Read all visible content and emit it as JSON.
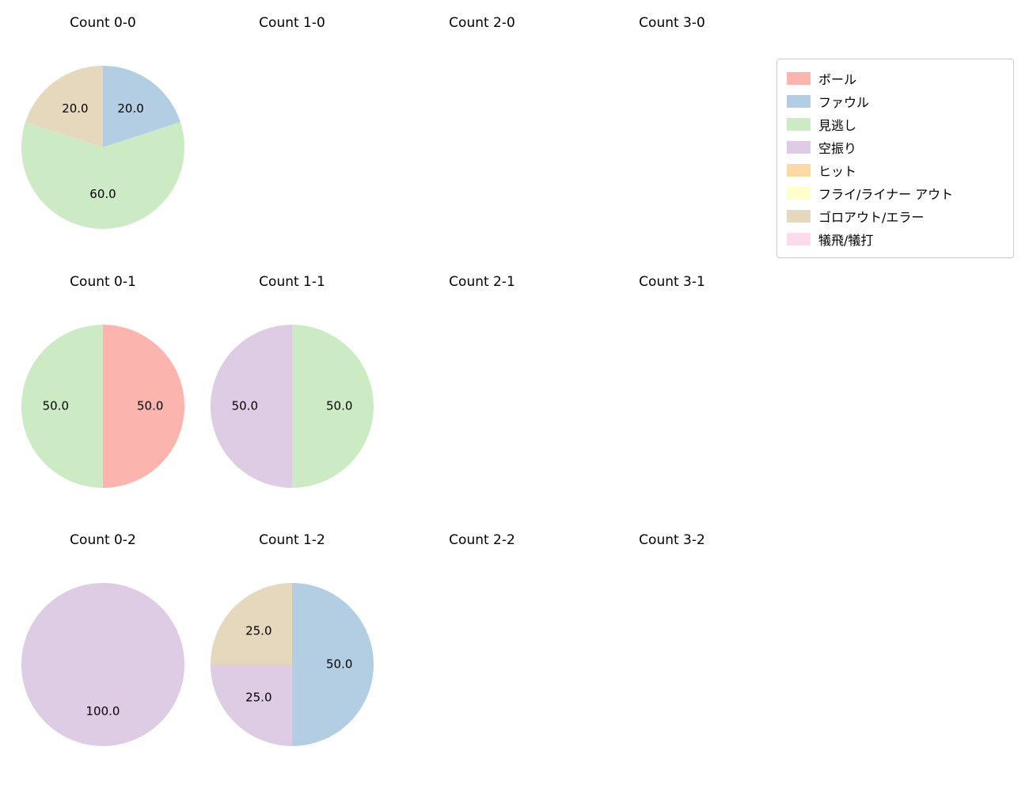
{
  "legend": {
    "items": [
      {
        "label": "ボール",
        "color": "#fbb4ae"
      },
      {
        "label": "ファウル",
        "color": "#b3cde3"
      },
      {
        "label": "見逃し",
        "color": "#ccebc5"
      },
      {
        "label": "空振り",
        "color": "#decbe4"
      },
      {
        "label": "ヒット",
        "color": "#fed9a6"
      },
      {
        "label": "フライ/ライナー アウト",
        "color": "#ffffcc"
      },
      {
        "label": "ゴロアウト/エラー",
        "color": "#e5d8bd"
      },
      {
        "label": "犠飛/犠打",
        "color": "#fddaec"
      }
    ]
  },
  "chart_data": [
    {
      "type": "pie",
      "title": "Count 0-0",
      "start_angle": 90,
      "direction": "clockwise",
      "slices": [
        {
          "label": "ファウル",
          "value": 20.0
        },
        {
          "label": "見逃し",
          "value": 60.0
        },
        {
          "label": "ゴロアウト/エラー",
          "value": 20.0
        }
      ]
    },
    {
      "type": "pie",
      "title": "Count 1-0",
      "start_angle": 90,
      "direction": "clockwise",
      "slices": []
    },
    {
      "type": "pie",
      "title": "Count 2-0",
      "start_angle": 90,
      "direction": "clockwise",
      "slices": []
    },
    {
      "type": "pie",
      "title": "Count 3-0",
      "start_angle": 90,
      "direction": "clockwise",
      "slices": []
    },
    {
      "type": "pie",
      "title": "Count 0-1",
      "start_angle": 90,
      "direction": "clockwise",
      "slices": [
        {
          "label": "ボール",
          "value": 50.0
        },
        {
          "label": "見逃し",
          "value": 50.0
        }
      ]
    },
    {
      "type": "pie",
      "title": "Count 1-1",
      "start_angle": 90,
      "direction": "clockwise",
      "slices": [
        {
          "label": "見逃し",
          "value": 50.0
        },
        {
          "label": "空振り",
          "value": 50.0
        }
      ]
    },
    {
      "type": "pie",
      "title": "Count 2-1",
      "start_angle": 90,
      "direction": "clockwise",
      "slices": []
    },
    {
      "type": "pie",
      "title": "Count 3-1",
      "start_angle": 90,
      "direction": "clockwise",
      "slices": []
    },
    {
      "type": "pie",
      "title": "Count 0-2",
      "start_angle": 90,
      "direction": "clockwise",
      "slices": [
        {
          "label": "空振り",
          "value": 100.0
        }
      ]
    },
    {
      "type": "pie",
      "title": "Count 1-2",
      "start_angle": 90,
      "direction": "clockwise",
      "slices": [
        {
          "label": "ファウル",
          "value": 50.0
        },
        {
          "label": "空振り",
          "value": 25.0
        },
        {
          "label": "ゴロアウト/エラー",
          "value": 25.0
        }
      ]
    },
    {
      "type": "pie",
      "title": "Count 2-2",
      "start_angle": 90,
      "direction": "clockwise",
      "slices": []
    },
    {
      "type": "pie",
      "title": "Count 3-2",
      "start_angle": 90,
      "direction": "clockwise",
      "slices": []
    }
  ]
}
